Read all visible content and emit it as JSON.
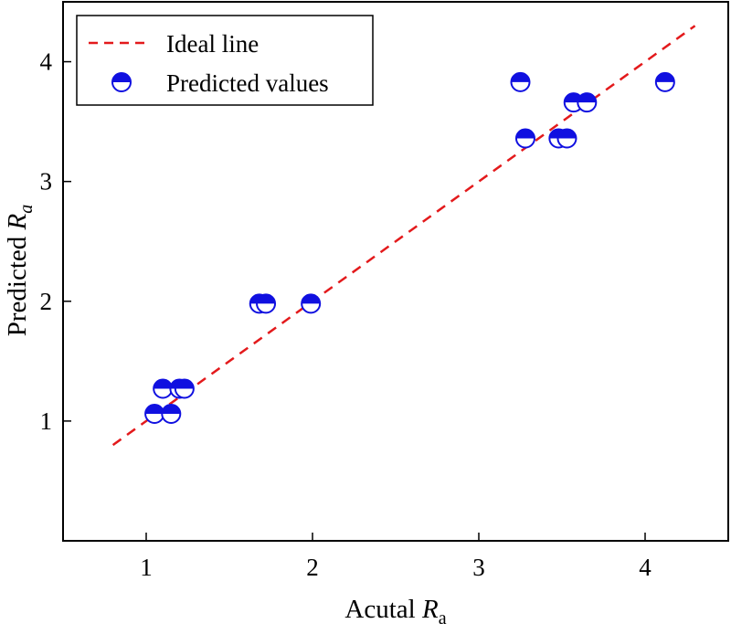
{
  "chart_data": {
    "type": "scatter",
    "xlabel": {
      "text": "Acutal ",
      "var": "R",
      "sub": "a"
    },
    "ylabel": {
      "text": "Predicted ",
      "var": "R",
      "sub": "a"
    },
    "xlim": [
      0.5,
      4.5
    ],
    "ylim": [
      0.0,
      4.5
    ],
    "x_ticks": [
      1,
      2,
      3,
      4
    ],
    "y_ticks": [
      1,
      2,
      3,
      4
    ],
    "grid": false,
    "legend_position": "top-left",
    "series": [
      {
        "name": "Ideal line",
        "kind": "line",
        "style": "dashed",
        "color": "#e31a1c",
        "points": [
          [
            0.8,
            0.8
          ],
          [
            4.3,
            4.3
          ]
        ]
      },
      {
        "name": "Predicted values",
        "kind": "scatter",
        "marker": "half-filled-circle",
        "color": "#1010e0",
        "points": [
          [
            1.05,
            1.06
          ],
          [
            1.15,
            1.06
          ],
          [
            1.1,
            1.27
          ],
          [
            1.2,
            1.27
          ],
          [
            1.23,
            1.27
          ],
          [
            1.68,
            1.98
          ],
          [
            1.72,
            1.98
          ],
          [
            1.99,
            1.98
          ],
          [
            3.25,
            3.83
          ],
          [
            4.12,
            3.83
          ],
          [
            3.28,
            3.36
          ],
          [
            3.48,
            3.36
          ],
          [
            3.53,
            3.36
          ],
          [
            3.57,
            3.66
          ],
          [
            3.65,
            3.66
          ]
        ]
      }
    ]
  }
}
